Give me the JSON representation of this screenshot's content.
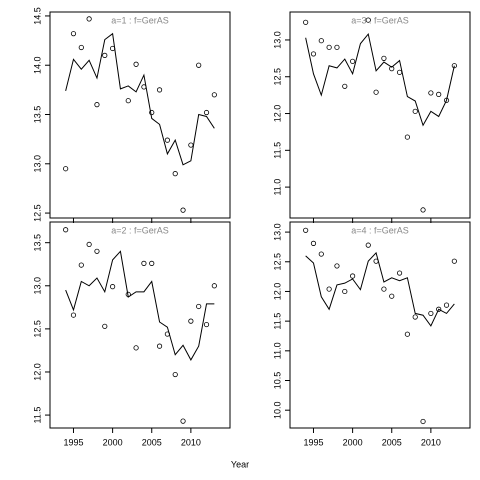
{
  "x_label": "Year",
  "chart_data": [
    {
      "type": "line",
      "title": "a=1  :  f=GerAS",
      "x": [
        1994,
        1995,
        1996,
        1997,
        1998,
        1999,
        2000,
        2001,
        2002,
        2003,
        2004,
        2005,
        2006,
        2007,
        2008,
        2009,
        2010,
        2011,
        2012,
        2013
      ],
      "series": [
        {
          "marker": "circle",
          "color": "#000000",
          "values": [
            12.95,
            14.32,
            14.18,
            14.47,
            13.6,
            14.1,
            14.17,
            null,
            13.64,
            14.01,
            13.78,
            13.52,
            13.75,
            13.24,
            12.9,
            12.53,
            13.19,
            14.0,
            13.52,
            13.7
          ]
        },
        {
          "marker": "none",
          "color": "#000000",
          "values": [
            13.74,
            14.06,
            13.96,
            14.05,
            13.87,
            14.26,
            14.32,
            13.76,
            13.79,
            13.73,
            13.9,
            13.46,
            13.4,
            13.1,
            13.24,
            12.99,
            13.03,
            13.5,
            13.48,
            13.36
          ]
        }
      ],
      "xlim": [
        1992,
        2015
      ],
      "xticks": [
        1995,
        2000,
        2005,
        2010
      ],
      "ylim": [
        12.45,
        14.54
      ],
      "yticks": [
        12.5,
        {
          "value": 13,
          "label": "13.0"
        },
        13.5,
        {
          "value": 14,
          "label": "14.0"
        },
        14.5
      ]
    },
    {
      "type": "line",
      "title": "a=3  :  f=GerAS",
      "x": [
        1994,
        1995,
        1996,
        1997,
        1998,
        1999,
        2000,
        2001,
        2002,
        2003,
        2004,
        2005,
        2006,
        2007,
        2008,
        2009,
        2010,
        2011,
        2012,
        2013
      ],
      "series": [
        {
          "marker": "circle",
          "color": "#000000",
          "values": [
            13.24,
            12.81,
            12.99,
            12.9,
            12.9,
            12.37,
            12.71,
            null,
            13.27,
            12.29,
            12.75,
            12.61,
            12.56,
            11.68,
            12.03,
            10.69,
            12.28,
            12.26,
            12.18,
            12.65
          ]
        },
        {
          "marker": "none",
          "color": "#000000",
          "values": [
            13.03,
            12.54,
            12.25,
            12.65,
            12.62,
            12.74,
            12.54,
            12.95,
            13.08,
            12.58,
            12.7,
            12.63,
            12.72,
            12.23,
            12.17,
            11.84,
            12.03,
            11.96,
            12.18,
            12.65
          ]
        }
      ],
      "xlim": [
        1992,
        2015
      ],
      "xticks": [
        1995,
        2000,
        2005,
        2010
      ],
      "ylim": [
        10.58,
        13.38
      ],
      "yticks": [
        {
          "value": 11,
          "label": "11.0"
        },
        11.5,
        {
          "value": 12,
          "label": "12.0"
        },
        12.5,
        {
          "value": 13,
          "label": "13.0"
        }
      ]
    },
    {
      "type": "line",
      "title": "a=2  :  f=GerAS",
      "x": [
        1994,
        1995,
        1996,
        1997,
        1998,
        1999,
        2000,
        2001,
        2002,
        2003,
        2004,
        2005,
        2006,
        2007,
        2008,
        2009,
        2010,
        2011,
        2012,
        2013
      ],
      "series": [
        {
          "marker": "circle",
          "color": "#000000",
          "values": [
            13.65,
            12.66,
            13.24,
            13.48,
            13.4,
            12.53,
            12.99,
            null,
            12.9,
            12.28,
            13.26,
            13.26,
            12.3,
            12.44,
            11.97,
            11.43,
            12.59,
            12.76,
            12.55,
            13.0
          ]
        },
        {
          "marker": "none",
          "color": "#000000",
          "values": [
            12.95,
            12.72,
            13.05,
            13.0,
            13.09,
            12.93,
            13.3,
            13.4,
            12.87,
            12.93,
            12.93,
            13.05,
            12.58,
            12.52,
            12.2,
            12.31,
            12.14,
            12.3,
            12.79,
            12.79
          ]
        }
      ],
      "xlim": [
        1992,
        2015
      ],
      "xticks": [
        1995,
        2000,
        2005,
        2010
      ],
      "ylim": [
        11.35,
        13.74
      ],
      "yticks": [
        11.5,
        {
          "value": 12,
          "label": "12.0"
        },
        12.5,
        {
          "value": 13,
          "label": "13.0"
        },
        13.5
      ]
    },
    {
      "type": "line",
      "title": "a=4  :  f=GerAS",
      "x": [
        1994,
        1995,
        1996,
        1997,
        1998,
        1999,
        2000,
        2001,
        2002,
        2003,
        2004,
        2005,
        2006,
        2007,
        2008,
        2009,
        2010,
        2011,
        2012,
        2013
      ],
      "series": [
        {
          "marker": "circle",
          "color": "#000000",
          "values": [
            13.03,
            12.81,
            12.63,
            12.04,
            12.43,
            12.0,
            12.26,
            null,
            12.78,
            12.51,
            12.04,
            11.92,
            12.31,
            11.28,
            11.57,
            9.81,
            11.63,
            11.7,
            11.77,
            12.51
          ]
        },
        {
          "marker": "none",
          "color": "#000000",
          "values": [
            12.6,
            12.48,
            11.91,
            11.7,
            12.11,
            12.14,
            12.21,
            12.03,
            12.51,
            12.65,
            12.16,
            12.23,
            12.18,
            12.23,
            11.63,
            11.6,
            11.42,
            11.7,
            11.63,
            11.79
          ]
        }
      ],
      "xlim": [
        1992,
        2015
      ],
      "xticks": [
        1995,
        2000,
        2005,
        2010
      ],
      "ylim": [
        9.7,
        13.17
      ],
      "yticks": [
        {
          "value": 10,
          "label": "10.0"
        },
        10.5,
        {
          "value": 11,
          "label": "11.0"
        },
        11.5,
        {
          "value": 12,
          "label": "12.0"
        },
        12.5,
        {
          "value": 13,
          "label": "13.0"
        }
      ]
    }
  ]
}
